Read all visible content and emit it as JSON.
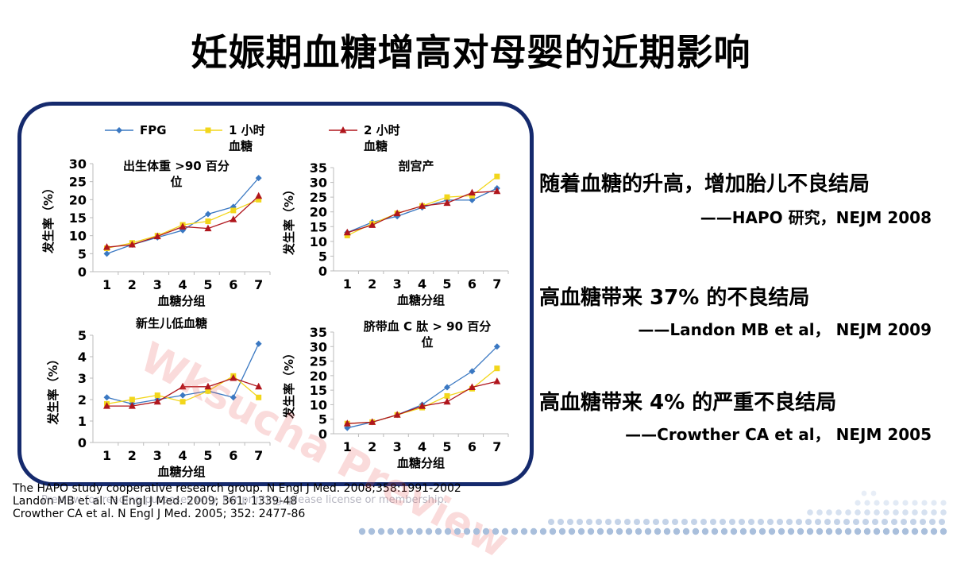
{
  "title": "妊娠期血糖增高对母婴的近期影响",
  "legend": [
    {
      "label": "FPG",
      "color": "#3a78c2",
      "marker": "diamond"
    },
    {
      "label": "1 小时血糖",
      "color": "#f2d61b",
      "marker": "square"
    },
    {
      "label": "2 小时血糖",
      "color": "#b0161d",
      "marker": "triangle"
    }
  ],
  "chart_data": [
    {
      "type": "line",
      "title": "出生体重 >90 百分位",
      "xlabel": "血糖分组",
      "ylabel": "发生率（%）",
      "x": [
        1,
        2,
        3,
        4,
        5,
        6,
        7
      ],
      "ylim": [
        0,
        30
      ],
      "yticks": [
        0,
        5,
        10,
        15,
        20,
        25,
        30
      ],
      "series": [
        {
          "name": "FPG",
          "values": [
            5,
            7.5,
            9.5,
            11.5,
            16,
            18,
            26
          ]
        },
        {
          "name": "1 小时血糖",
          "values": [
            6.5,
            8,
            10,
            13,
            14,
            17,
            20
          ]
        },
        {
          "name": "2 小时血糖",
          "values": [
            6.8,
            7.5,
            9.8,
            12.5,
            12,
            14.5,
            21
          ]
        }
      ]
    },
    {
      "type": "line",
      "title": "剖宫产",
      "xlabel": "血糖分组",
      "ylabel": "发生率（%）",
      "x": [
        1,
        2,
        3,
        4,
        5,
        6,
        7
      ],
      "ylim": [
        0,
        35
      ],
      "yticks": [
        0,
        5,
        10,
        15,
        20,
        25,
        30,
        35
      ],
      "series": [
        {
          "name": "FPG",
          "values": [
            13,
            16.5,
            18.5,
            21.5,
            24,
            24,
            28
          ]
        },
        {
          "name": "1 小时血糖",
          "values": [
            12,
            16,
            19.5,
            22,
            25,
            25.5,
            32
          ]
        },
        {
          "name": "2 小时血糖",
          "values": [
            13,
            15.5,
            19.5,
            22,
            23,
            26.5,
            27
          ]
        }
      ]
    },
    {
      "type": "line",
      "title": "新生儿低血糖",
      "xlabel": "血糖分组",
      "ylabel": "发生率（%）",
      "x": [
        1,
        2,
        3,
        4,
        5,
        6,
        7
      ],
      "ylim": [
        0,
        5
      ],
      "yticks": [
        0,
        1,
        2,
        3,
        4,
        5
      ],
      "series": [
        {
          "name": "FPG",
          "values": [
            2.1,
            1.8,
            2.0,
            2.2,
            2.4,
            2.1,
            4.6
          ]
        },
        {
          "name": "1 小时血糖",
          "values": [
            1.8,
            2.0,
            2.2,
            1.9,
            2.4,
            3.1,
            2.1
          ]
        },
        {
          "name": "2 小时血糖",
          "values": [
            1.7,
            1.7,
            1.9,
            2.6,
            2.6,
            3.0,
            2.6
          ]
        }
      ]
    },
    {
      "type": "line",
      "title": "脐带血 C 肽 > 90 百分位",
      "xlabel": "血糖分组",
      "ylabel": "发生率（%）",
      "x": [
        1,
        2,
        3,
        4,
        5,
        6,
        7
      ],
      "ylim": [
        0,
        35
      ],
      "yticks": [
        0,
        5,
        10,
        15,
        20,
        25,
        30,
        35
      ],
      "series": [
        {
          "name": "FPG",
          "values": [
            2,
            4,
            6.5,
            10,
            16,
            21.5,
            30
          ]
        },
        {
          "name": "1 小时血糖",
          "values": [
            3.5,
            4,
            6.5,
            9,
            13,
            15.5,
            22.5
          ]
        },
        {
          "name": "2 小时血糖",
          "values": [
            3.5,
            4,
            6.5,
            9.5,
            11,
            16,
            18
          ]
        }
      ]
    }
  ],
  "findings": [
    {
      "text": "随着血糖的升高，增加胎儿不良结局",
      "source": "——HAPO  研究，NEJM 2008"
    },
    {
      "text": "高血糖带来 37% 的不良结局",
      "source": "——Landon MB et al， NEJM 2009"
    },
    {
      "text": "高血糖带来 4% 的严重不良结局",
      "source": "——Crowther CA et al， NEJM 2005"
    }
  ],
  "references": [
    "The HAPO study cooperative research group. N Engl J Med. 2008;358:1991-2002",
    "Landon MB et al. N Engl J Med. 2009; 361: 1339-48",
    "Crowther CA et al. N Engl J Med. 2005; 352: 2477-86"
  ],
  "watermark": "Wksucha Preview",
  "preview_note": "Preview for reading purposes only. For printing, please license or membership."
}
